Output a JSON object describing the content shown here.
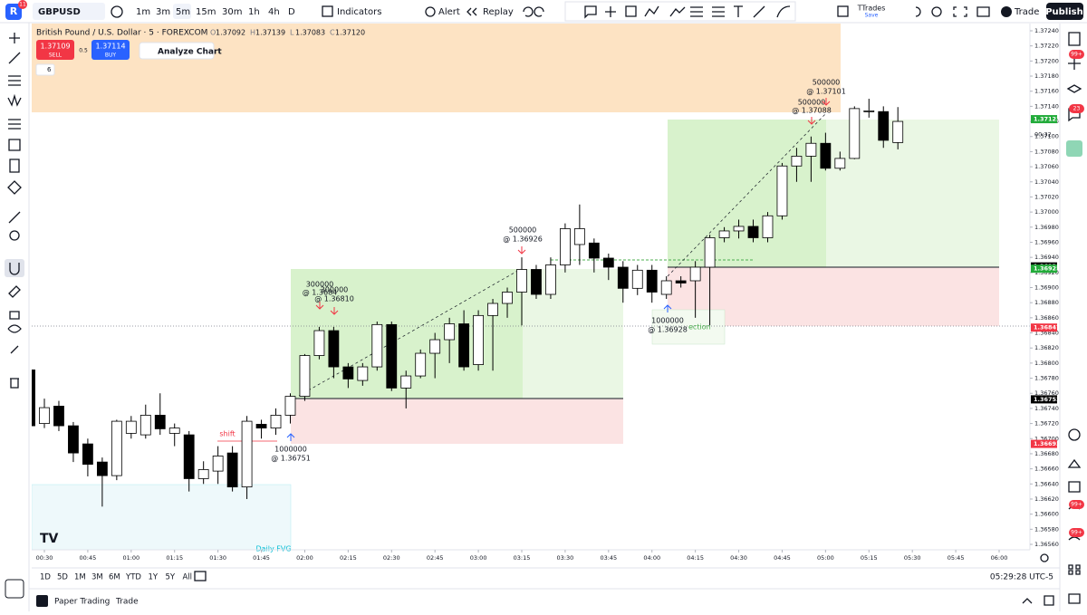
{
  "toolbar": {
    "profile_badge": "11",
    "symbol": "GBPUSD",
    "intervals": [
      "1m",
      "3m",
      "5m",
      "15m",
      "30m",
      "1h",
      "4h",
      "D"
    ],
    "indicators": "Indicators",
    "alert": "Alert",
    "replay": "Replay",
    "layout_name": "TTrades",
    "layout_save": "Save",
    "trade": "Trade",
    "publish": "Publish"
  },
  "legend": {
    "title": "British Pound / U.S. Dollar · 5 · FOREXCOM",
    "o_label": "O",
    "o": "1.37092",
    "h_label": "H",
    "h": "1.37139",
    "l_label": "L",
    "l": "1.37083",
    "c_label": "C",
    "c": "1.37120",
    "sell_price": "1.37109",
    "sell": "SELL",
    "spread": "0.5",
    "buy_price": "1.37114",
    "buy": "BUY",
    "analyze": "Analyze Chart",
    "collapsed_count": "6"
  },
  "chart_data": {
    "type": "candlestick",
    "x": [
      "00:25",
      "00:30",
      "00:35",
      "00:40",
      "00:45",
      "00:50",
      "00:55",
      "01:00",
      "01:05",
      "01:10",
      "01:15",
      "01:20",
      "01:25",
      "01:30",
      "01:35",
      "01:40",
      "01:45",
      "01:50",
      "01:55",
      "02:00",
      "02:05",
      "02:10",
      "02:15",
      "02:20",
      "02:25",
      "02:30",
      "02:35",
      "02:40",
      "02:45",
      "02:50",
      "02:55",
      "03:00",
      "03:05",
      "03:10",
      "03:15",
      "03:20",
      "03:25",
      "03:30",
      "03:35",
      "03:40",
      "03:45",
      "03:50",
      "03:55",
      "04:00",
      "04:05",
      "04:10",
      "04:15",
      "04:20",
      "04:25",
      "04:30",
      "04:35",
      "04:40",
      "04:45",
      "04:50",
      "04:55",
      "05:00",
      "05:05",
      "05:10",
      "05:15",
      "05:20",
      "05:25"
    ],
    "open": [
      1.36791,
      1.3672,
      1.36743,
      1.36717,
      1.36693,
      1.36669,
      1.36651,
      1.36707,
      1.36705,
      1.36731,
      1.36707,
      1.36705,
      1.36647,
      1.36657,
      1.36681,
      1.36636,
      1.36719,
      1.36714,
      1.36731,
      1.36756,
      1.3681,
      1.36843,
      1.36795,
      1.36777,
      1.36795,
      1.36851,
      1.36767,
      1.36783,
      1.36813,
      1.36831,
      1.36852,
      1.36798,
      1.36863,
      1.36879,
      1.36894,
      1.36924,
      1.36891,
      1.3693,
      1.36957,
      1.36959,
      1.36939,
      1.36927,
      1.36899,
      1.36923,
      1.36891,
      1.36909,
      1.36909,
      1.36927,
      1.36966,
      1.36975,
      1.36981,
      1.36966,
      1.36995,
      1.37061,
      1.37074,
      1.37091,
      1.37058,
      1.37071,
      1.37133,
      1.37133,
      1.37092
    ],
    "high": [
      1.368,
      1.36753,
      1.3675,
      1.36722,
      1.367,
      1.36675,
      1.36725,
      1.3673,
      1.36745,
      1.3676,
      1.3672,
      1.3671,
      1.3667,
      1.3669,
      1.3669,
      1.3673,
      1.36725,
      1.3674,
      1.3676,
      1.36812,
      1.36848,
      1.36848,
      1.368,
      1.368,
      1.36855,
      1.36855,
      1.3679,
      1.36818,
      1.3684,
      1.3686,
      1.3687,
      1.3687,
      1.36885,
      1.369,
      1.3694,
      1.3693,
      1.3694,
      1.36985,
      1.3701,
      1.36965,
      1.36945,
      1.36935,
      1.3693,
      1.3693,
      1.36915,
      1.36915,
      1.36935,
      1.3697,
      1.3698,
      1.3699,
      1.3699,
      1.37,
      1.37065,
      1.37085,
      1.371,
      1.37105,
      1.3708,
      1.3714,
      1.3715,
      1.3714,
      1.37139
    ],
    "low": [
      1.36705,
      1.36714,
      1.3671,
      1.36669,
      1.3665,
      1.3661,
      1.36645,
      1.367,
      1.367,
      1.36705,
      1.3669,
      1.3663,
      1.3664,
      1.3664,
      1.3663,
      1.3662,
      1.367,
      1.36705,
      1.3672,
      1.3675,
      1.36805,
      1.3678,
      1.36767,
      1.3677,
      1.3679,
      1.36763,
      1.3674,
      1.3678,
      1.3678,
      1.368,
      1.3679,
      1.3679,
      1.3679,
      1.3686,
      1.3685,
      1.36885,
      1.36885,
      1.3692,
      1.3693,
      1.3692,
      1.3691,
      1.3688,
      1.3689,
      1.3688,
      1.36885,
      1.369,
      1.3686,
      1.3685,
      1.3696,
      1.36965,
      1.3696,
      1.3696,
      1.3699,
      1.3704,
      1.3704,
      1.37055,
      1.37055,
      1.3707,
      1.37125,
      1.37085,
      1.37083
    ],
    "close": [
      1.36717,
      1.36741,
      1.36717,
      1.36681,
      1.36666,
      1.36651,
      1.36723,
      1.36723,
      1.36731,
      1.36713,
      1.36714,
      1.36647,
      1.36659,
      1.36677,
      1.36636,
      1.36723,
      1.36714,
      1.36731,
      1.36756,
      1.3681,
      1.36843,
      1.36795,
      1.36779,
      1.36795,
      1.36851,
      1.36767,
      1.36783,
      1.36813,
      1.36831,
      1.36852,
      1.36795,
      1.36863,
      1.36879,
      1.36894,
      1.36924,
      1.36891,
      1.3693,
      1.36978,
      1.36978,
      1.36939,
      1.36927,
      1.36899,
      1.36923,
      1.36894,
      1.36909,
      1.36906,
      1.36927,
      1.36966,
      1.36975,
      1.36981,
      1.36966,
      1.36995,
      1.37061,
      1.37074,
      1.37091,
      1.37058,
      1.37071,
      1.37137,
      1.37134,
      1.37095,
      1.3712
    ],
    "up_color": "#ffffff",
    "down_color": "#000000",
    "wick_color": "#000000",
    "ylim": [
      1.3656,
      1.3724
    ],
    "yticks": [
      {
        "value": 1.3724,
        "label": "1.37240"
      },
      {
        "value": 1.3722,
        "label": "1.37220"
      },
      {
        "value": 1.372,
        "label": "1.37200"
      },
      {
        "value": 1.3718,
        "label": "1.37180"
      },
      {
        "value": 1.3716,
        "label": "1.37160"
      },
      {
        "value": 1.3714,
        "label": "1.37140"
      },
      {
        "value": 1.3712,
        "label": "1.37120"
      },
      {
        "value": 1.371,
        "label": "1.37100"
      },
      {
        "value": 1.3708,
        "label": "1.37080"
      },
      {
        "value": 1.3706,
        "label": "1.37060"
      },
      {
        "value": 1.3704,
        "label": "1.37040"
      },
      {
        "value": 1.3702,
        "label": "1.37020"
      },
      {
        "value": 1.37,
        "label": "1.37000"
      },
      {
        "value": 1.3698,
        "label": "1.36980"
      },
      {
        "value": 1.3696,
        "label": "1.36960"
      },
      {
        "value": 1.3694,
        "label": "1.36940"
      },
      {
        "value": 1.3692,
        "label": "1.36920"
      },
      {
        "value": 1.369,
        "label": "1.36900"
      },
      {
        "value": 1.3688,
        "label": "1.36880"
      },
      {
        "value": 1.3686,
        "label": "1.36860"
      },
      {
        "value": 1.3684,
        "label": "1.36840"
      },
      {
        "value": 1.3682,
        "label": "1.36820"
      },
      {
        "value": 1.368,
        "label": "1.36800"
      },
      {
        "value": 1.3678,
        "label": "1.36780"
      },
      {
        "value": 1.3676,
        "label": "1.36760"
      },
      {
        "value": 1.3674,
        "label": "1.36740"
      },
      {
        "value": 1.3672,
        "label": "1.36720"
      },
      {
        "value": 1.367,
        "label": "1.36700"
      },
      {
        "value": 1.3668,
        "label": "1.36680"
      },
      {
        "value": 1.3666,
        "label": "1.36660"
      },
      {
        "value": 1.3664,
        "label": "1.36640"
      },
      {
        "value": 1.3662,
        "label": "1.36620"
      },
      {
        "value": 1.366,
        "label": "1.36600"
      },
      {
        "value": 1.3658,
        "label": "1.36580"
      },
      {
        "value": 1.3656,
        "label": "1.36560"
      }
    ],
    "xticks": [
      "00:30",
      "00:45",
      "01:00",
      "01:15",
      "01:30",
      "01:45",
      "02:00",
      "02:15",
      "02:30",
      "02:45",
      "03:00",
      "03:15",
      "03:30",
      "03:45",
      "04:00",
      "04:15",
      "04:30",
      "04:45",
      "05:00",
      "05:15",
      "05:30",
      "05:45",
      "06:00"
    ],
    "price_labels": [
      {
        "value": 1.37123,
        "label": "1.37123",
        "color": "#22ab3a"
      },
      {
        "value": 1.36928,
        "label": "1.36928",
        "color": "#000000"
      },
      {
        "value": 1.36925,
        "label": "1.36925",
        "color": "#22ab3a"
      },
      {
        "value": 1.36847,
        "label": "1.36847",
        "color": "#f23645"
      },
      {
        "value": 1.36752,
        "label": "1.36752",
        "color": "#000000"
      },
      {
        "value": 1.36693,
        "label": "1.36693",
        "color": "#f23645"
      }
    ],
    "countdown": "00:32"
  },
  "annotations": [
    "500000",
    "@ 1.37101",
    "500000",
    "@ 1.37088",
    "500000",
    "@ 1.36926",
    "300000",
    "@ 1.3684",
    "300000",
    "@ 1.36810",
    "1000000",
    "@ 1.36751",
    "1000000",
    "@ 1.36928",
    "shift",
    "ection",
    "Daily FVG"
  ],
  "right_badges": [
    "99+",
    "23",
    "99+",
    "99+"
  ],
  "range_bar": {
    "ranges": [
      "1D",
      "5D",
      "1M",
      "3M",
      "6M",
      "YTD",
      "1Y",
      "5Y",
      "All"
    ],
    "clock": "05:29:28 UTC-5"
  },
  "bottom_bar": {
    "paper": "Paper Trading",
    "trade": "Trade"
  }
}
